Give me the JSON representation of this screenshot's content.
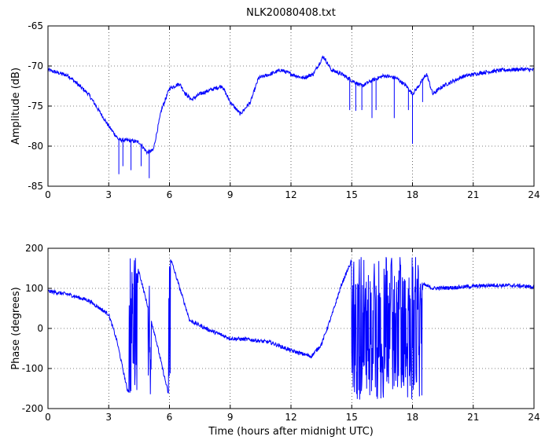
{
  "figure": {
    "title": "NLK20080408.txt",
    "xlabel": "Time (hours after midnight UTC)",
    "line_color": "#0000ff"
  },
  "chart_data": [
    {
      "type": "line",
      "title": "NLK20080408.txt",
      "xlabel": "",
      "ylabel": "Amplitude (dB)",
      "xlim": [
        0,
        24
      ],
      "ylim": [
        -85,
        -65
      ],
      "xticks": [
        0,
        3,
        6,
        9,
        12,
        15,
        18,
        21,
        24
      ],
      "yticks": [
        -85,
        -80,
        -75,
        -70,
        -65
      ],
      "grid": true,
      "series": [
        {
          "noisy": true,
          "points": [
            [
              0,
              -70.5
            ],
            [
              1,
              -71.2
            ],
            [
              2,
              -73.5
            ],
            [
              3,
              -77.5
            ],
            [
              3.5,
              -79.2
            ],
            [
              4,
              -79.3
            ],
            [
              4.5,
              -79.5
            ],
            [
              4.9,
              -80.8
            ],
            [
              5.2,
              -80.5
            ],
            [
              5.6,
              -75.5
            ],
            [
              6,
              -72.8
            ],
            [
              6.5,
              -72.2
            ],
            [
              6.8,
              -73.5
            ],
            [
              7.1,
              -74.2
            ],
            [
              7.5,
              -73.5
            ],
            [
              8,
              -73
            ],
            [
              8.6,
              -72.5
            ],
            [
              9,
              -74.5
            ],
            [
              9.5,
              -76
            ],
            [
              10,
              -74.5
            ],
            [
              10.4,
              -71.5
            ],
            [
              11,
              -71
            ],
            [
              11.5,
              -70.5
            ],
            [
              12,
              -71
            ],
            [
              12.6,
              -71.5
            ],
            [
              13.1,
              -71
            ],
            [
              13.6,
              -68.8
            ],
            [
              14,
              -70.5
            ],
            [
              14.5,
              -71
            ],
            [
              15,
              -71.8
            ],
            [
              15.5,
              -72.5
            ],
            [
              16,
              -71.8
            ],
            [
              16.6,
              -71.2
            ],
            [
              17.2,
              -71.5
            ],
            [
              17.7,
              -72.5
            ],
            [
              18,
              -73.5
            ],
            [
              18.3,
              -72.5
            ],
            [
              18.7,
              -71
            ],
            [
              19,
              -73.5
            ],
            [
              19.5,
              -72.5
            ],
            [
              20.5,
              -71.3
            ],
            [
              21.5,
              -70.8
            ],
            [
              22.5,
              -70.5
            ],
            [
              23.5,
              -70.4
            ],
            [
              24,
              -70.5
            ]
          ],
          "spikes": [
            [
              3.5,
              -83.5
            ],
            [
              3.7,
              -82.5
            ],
            [
              4.1,
              -83
            ],
            [
              4.6,
              -82.5
            ],
            [
              5,
              -84
            ],
            [
              14.9,
              -75.5
            ],
            [
              15.2,
              -75.6
            ],
            [
              15.5,
              -75.5
            ],
            [
              16,
              -76.5
            ],
            [
              16.2,
              -75.5
            ],
            [
              17.1,
              -76.5
            ],
            [
              17.8,
              -75.5
            ],
            [
              18,
              -79.7
            ],
            [
              18.5,
              -74.5
            ]
          ]
        }
      ]
    },
    {
      "type": "line",
      "title": "",
      "xlabel": "Time (hours after midnight UTC)",
      "ylabel": "Phase (degrees)",
      "xlim": [
        0,
        24
      ],
      "ylim": [
        -200,
        200
      ],
      "xticks": [
        0,
        3,
        6,
        9,
        12,
        15,
        18,
        21,
        24
      ],
      "yticks": [
        -200,
        -100,
        0,
        100,
        200
      ],
      "grid": true,
      "series": [
        {
          "noisy": true,
          "points": [
            [
              0,
              93
            ],
            [
              1,
              85
            ],
            [
              2,
              70
            ],
            [
              3,
              35
            ],
            [
              3.4,
              -30
            ],
            [
              3.9,
              -150
            ],
            [
              4.1,
              -165
            ],
            [
              4.2,
              170
            ],
            [
              4.5,
              140
            ],
            [
              5,
              40
            ],
            [
              5.3,
              -20
            ],
            [
              5.7,
              -110
            ],
            [
              6,
              -175
            ],
            [
              6.02,
              180
            ],
            [
              7,
              20
            ],
            [
              8,
              -5
            ],
            [
              9,
              -25
            ],
            [
              10,
              -28
            ],
            [
              11,
              -35
            ],
            [
              12,
              -55
            ],
            [
              13,
              -70
            ],
            [
              13.5,
              -40
            ],
            [
              14,
              30
            ],
            [
              14.5,
              110
            ],
            [
              15,
              170
            ],
            [
              15.2,
              -170
            ],
            [
              16,
              80
            ],
            [
              17,
              -100
            ],
            [
              18.5,
              110
            ],
            [
              19,
              100
            ],
            [
              20,
              102
            ],
            [
              21,
              105
            ],
            [
              22,
              108
            ],
            [
              23,
              107
            ],
            [
              24,
              104
            ]
          ],
          "wraps": [
            [
              4.0,
              4.45
            ],
            [
              4.95,
              5.1
            ],
            [
              5.95,
              6.05
            ],
            [
              15.0,
              18.5
            ]
          ]
        }
      ]
    }
  ]
}
